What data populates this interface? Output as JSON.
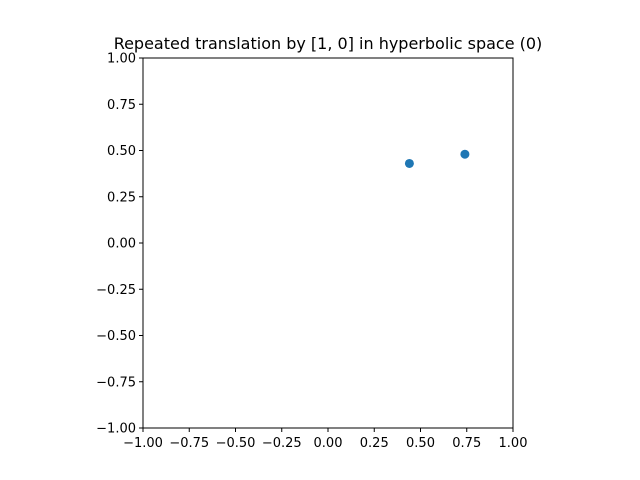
{
  "chart_data": {
    "type": "scatter",
    "title": "Repeated translation by [1, 0] in hyperbolic space (0)",
    "xlabel": "",
    "ylabel": "",
    "xlim": [
      -1.0,
      1.0
    ],
    "ylim": [
      -1.0,
      1.0
    ],
    "x_ticks": [
      "−1.00",
      "−0.75",
      "−0.50",
      "−0.25",
      "0.00",
      "0.25",
      "0.50",
      "0.75",
      "1.00"
    ],
    "y_ticks": [
      "−1.00",
      "−0.75",
      "−0.50",
      "−0.25",
      "0.00",
      "0.25",
      "0.50",
      "0.75",
      "1.00"
    ],
    "grid": false,
    "series": [
      {
        "color": "#1f77b4",
        "points": [
          {
            "x": 0.44,
            "y": 0.43
          },
          {
            "x": 0.74,
            "y": 0.48
          }
        ]
      }
    ]
  }
}
